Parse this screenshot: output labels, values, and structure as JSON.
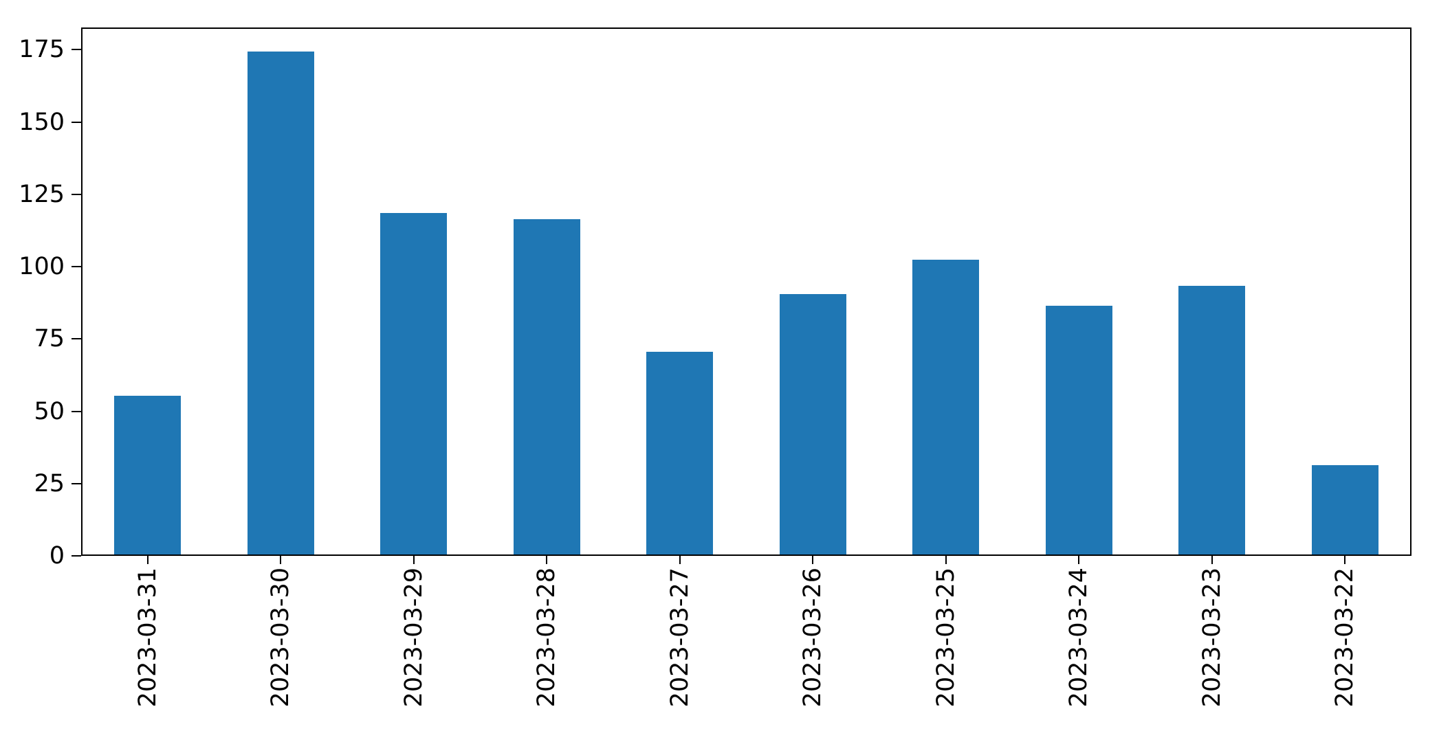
{
  "chart_data": {
    "type": "bar",
    "categories": [
      "2023-03-31",
      "2023-03-30",
      "2023-03-29",
      "2023-03-28",
      "2023-03-27",
      "2023-03-26",
      "2023-03-25",
      "2023-03-24",
      "2023-03-23",
      "2023-03-22"
    ],
    "values": [
      55,
      174,
      118,
      116,
      70,
      90,
      102,
      86,
      93,
      31
    ],
    "title": "",
    "xlabel": "",
    "ylabel": "",
    "ylim": [
      0,
      182.7
    ],
    "yticks": [
      0,
      25,
      50,
      75,
      100,
      125,
      150,
      175
    ],
    "bar_color": "#1f77b4",
    "axis_color": "#000000",
    "grid": false,
    "legend": null,
    "bar_width_fraction": 0.5,
    "x_label_rotation_deg": 90
  }
}
